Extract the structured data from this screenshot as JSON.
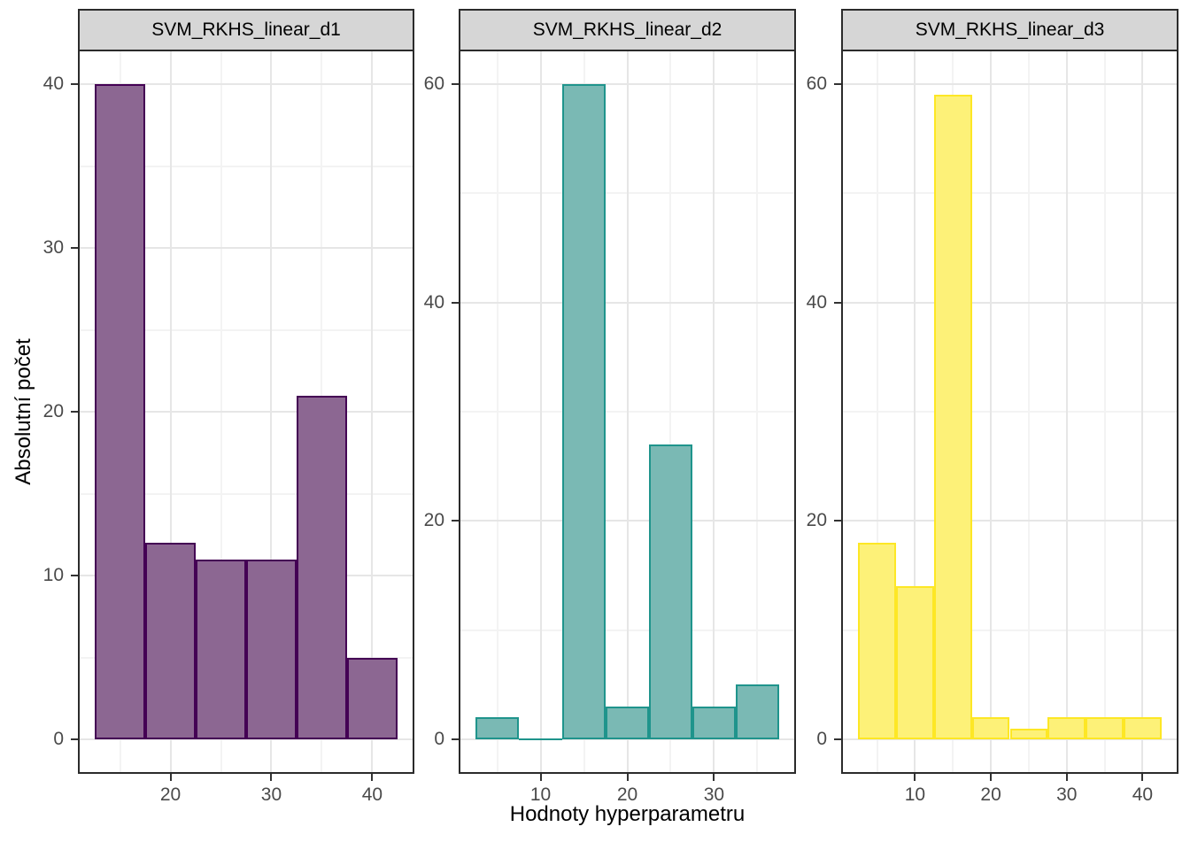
{
  "chart_data": {
    "type": "bar",
    "subtype": "faceted_histogram",
    "title": "",
    "xlabel": "Hodnoty hyperparametru",
    "ylabel": "Absolutní počet",
    "legend": "none",
    "grid": true,
    "colors": {
      "strip_background": "#d6d6d6",
      "panel_background": "#ffffff",
      "panel_border": "#2b2b2b",
      "grid_major": "#e6e6e6",
      "grid_minor": "#f3f3f3",
      "tick_label": "#4a4a4a",
      "axis_title": "#000000"
    },
    "facets": [
      {
        "title": "SVM_RKHS_linear_d1",
        "fill": "#8c6792",
        "stroke": "#440154",
        "bin_edges": [
          12.5,
          17.5,
          22.5,
          27.5,
          32.5,
          37.5,
          42.5
        ],
        "counts": [
          40,
          12,
          11,
          11,
          21,
          5
        ],
        "x_ticks": [
          20,
          30,
          40
        ],
        "x_minor": [
          15,
          25,
          35
        ],
        "y_ticks": [
          0,
          10,
          20,
          30,
          40
        ],
        "y_minor": [
          5,
          15,
          25,
          35
        ],
        "x_range": [
          11,
          44
        ],
        "y_range": [
          -2,
          42
        ]
      },
      {
        "title": "SVM_RKHS_linear_d2",
        "fill": "#7ab9b4",
        "stroke": "#1f948c",
        "bin_edges": [
          2.5,
          7.5,
          12.5,
          17.5,
          22.5,
          27.5,
          32.5,
          37.5
        ],
        "counts": [
          2,
          0,
          60,
          3,
          27,
          3,
          5
        ],
        "x_ticks": [
          10,
          20,
          30
        ],
        "x_minor": [
          5,
          15,
          25,
          35
        ],
        "y_ticks": [
          0,
          20,
          40,
          60
        ],
        "y_minor": [
          10,
          30,
          50
        ],
        "x_range": [
          0.75,
          39.25
        ],
        "y_range": [
          -3,
          63
        ]
      },
      {
        "title": "SVM_RKHS_linear_d3",
        "fill": "#fdf178",
        "stroke": "#fde725",
        "bin_edges": [
          2.5,
          7.5,
          12.5,
          17.5,
          22.5,
          27.5,
          32.5,
          37.5,
          42.5
        ],
        "counts": [
          18,
          14,
          59,
          2,
          1,
          2,
          2,
          2
        ],
        "x_ticks": [
          10,
          20,
          30,
          40
        ],
        "x_minor": [
          5,
          15,
          25,
          35
        ],
        "y_ticks": [
          0,
          20,
          40,
          60
        ],
        "y_minor": [
          10,
          30,
          50
        ],
        "x_range": [
          0.5,
          44.5
        ],
        "y_range": [
          -3,
          63
        ]
      }
    ]
  }
}
